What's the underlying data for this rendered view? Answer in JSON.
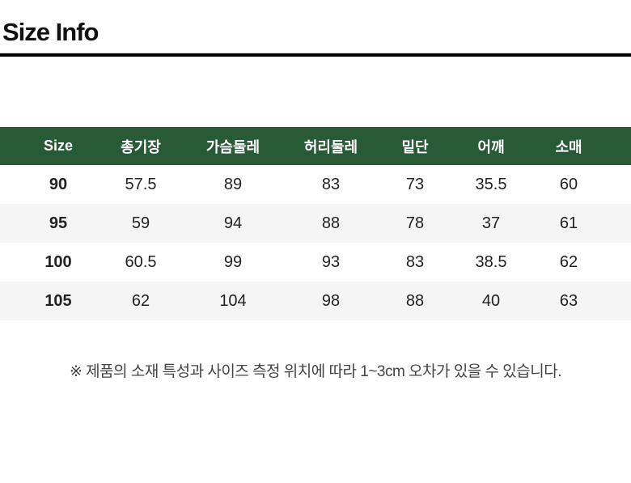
{
  "title": "Size Info",
  "table": {
    "headers": [
      "Size",
      "총기장",
      "가슴둘레",
      "허리둘레",
      "밑단",
      "어깨",
      "소매"
    ],
    "rows": [
      [
        "90",
        "57.5",
        "89",
        "83",
        "73",
        "35.5",
        "60"
      ],
      [
        "95",
        "59",
        "94",
        "88",
        "78",
        "37",
        "61"
      ],
      [
        "100",
        "60.5",
        "99",
        "93",
        "83",
        "38.5",
        "62"
      ],
      [
        "105",
        "62",
        "104",
        "98",
        "88",
        "40",
        "63"
      ]
    ]
  },
  "note": "※ 제품의 소재 특성과 사이즈 측정 위치에 따라 1~3cm 오차가 있을 수 있습니다.",
  "colors": {
    "header_bg": "#285a35",
    "stripe": "#f5f5f5"
  }
}
